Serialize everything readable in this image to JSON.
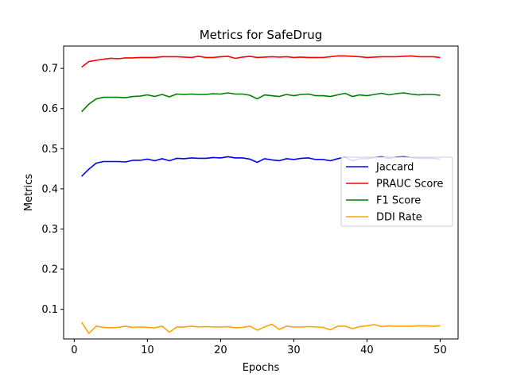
{
  "chart_data": {
    "type": "line",
    "title": "Metrics for SafeDrug",
    "xlabel": "Epochs",
    "ylabel": "Metrics",
    "xlim": [
      -1.45,
      52.45
    ],
    "ylim": [
      0.0262,
      0.7556
    ],
    "xticks": [
      0,
      10,
      20,
      30,
      40,
      50
    ],
    "yticks": [
      0.1,
      0.2,
      0.3,
      0.4,
      0.5,
      0.6,
      0.7
    ],
    "grid": false,
    "legend_position": "center-right",
    "x": [
      1,
      2,
      3,
      4,
      5,
      6,
      7,
      8,
      9,
      10,
      11,
      12,
      13,
      14,
      15,
      16,
      17,
      18,
      19,
      20,
      21,
      22,
      23,
      24,
      25,
      26,
      27,
      28,
      29,
      30,
      31,
      32,
      33,
      34,
      35,
      36,
      37,
      38,
      39,
      40,
      41,
      42,
      43,
      44,
      45,
      46,
      47,
      48,
      49,
      50
    ],
    "series": [
      {
        "name": "Jaccard",
        "color": "#0000ff",
        "values": [
          0.431,
          0.449,
          0.464,
          0.468,
          0.468,
          0.468,
          0.467,
          0.471,
          0.471,
          0.474,
          0.47,
          0.475,
          0.47,
          0.476,
          0.475,
          0.477,
          0.476,
          0.476,
          0.478,
          0.477,
          0.48,
          0.477,
          0.477,
          0.474,
          0.466,
          0.475,
          0.472,
          0.47,
          0.475,
          0.473,
          0.476,
          0.477,
          0.473,
          0.473,
          0.47,
          0.475,
          0.479,
          0.47,
          0.475,
          0.475,
          0.478,
          0.48,
          0.476,
          0.479,
          0.48,
          0.478,
          0.476,
          0.476,
          0.476,
          0.474
        ]
      },
      {
        "name": "PRAUC Score",
        "color": "#ff0000",
        "values": [
          0.703,
          0.717,
          0.72,
          0.723,
          0.725,
          0.724,
          0.726,
          0.726,
          0.727,
          0.727,
          0.727,
          0.729,
          0.729,
          0.729,
          0.728,
          0.727,
          0.73,
          0.727,
          0.727,
          0.729,
          0.73,
          0.725,
          0.728,
          0.73,
          0.727,
          0.728,
          0.729,
          0.728,
          0.729,
          0.727,
          0.728,
          0.727,
          0.727,
          0.727,
          0.729,
          0.731,
          0.731,
          0.73,
          0.729,
          0.727,
          0.728,
          0.729,
          0.729,
          0.729,
          0.73,
          0.731,
          0.729,
          0.729,
          0.729,
          0.727
        ]
      },
      {
        "name": "F1 Score",
        "color": "#008000",
        "values": [
          0.592,
          0.611,
          0.624,
          0.628,
          0.628,
          0.628,
          0.627,
          0.63,
          0.631,
          0.634,
          0.63,
          0.635,
          0.629,
          0.636,
          0.635,
          0.636,
          0.635,
          0.635,
          0.637,
          0.636,
          0.639,
          0.636,
          0.636,
          0.633,
          0.624,
          0.634,
          0.632,
          0.63,
          0.635,
          0.632,
          0.635,
          0.636,
          0.632,
          0.632,
          0.63,
          0.634,
          0.638,
          0.63,
          0.634,
          0.632,
          0.635,
          0.638,
          0.634,
          0.637,
          0.639,
          0.636,
          0.634,
          0.635,
          0.635,
          0.633
        ]
      },
      {
        "name": "DDI Rate",
        "color": "#ffa500",
        "values": [
          0.068,
          0.04,
          0.058,
          0.055,
          0.054,
          0.055,
          0.058,
          0.055,
          0.056,
          0.055,
          0.054,
          0.058,
          0.043,
          0.056,
          0.056,
          0.058,
          0.056,
          0.057,
          0.056,
          0.056,
          0.057,
          0.054,
          0.055,
          0.058,
          0.048,
          0.056,
          0.063,
          0.05,
          0.058,
          0.056,
          0.056,
          0.057,
          0.056,
          0.055,
          0.049,
          0.058,
          0.058,
          0.052,
          0.057,
          0.059,
          0.062,
          0.057,
          0.059,
          0.058,
          0.058,
          0.058,
          0.059,
          0.059,
          0.058,
          0.059
        ]
      }
    ]
  }
}
